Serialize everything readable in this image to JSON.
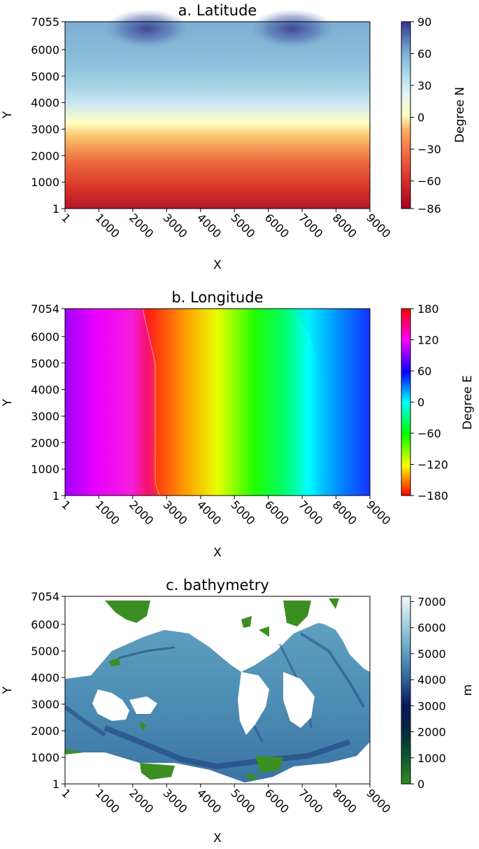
{
  "chart_data": [
    {
      "type": "heatmap",
      "title": "a. Latitude",
      "xlabel": "X",
      "ylabel": "Y",
      "xlim": [
        1,
        9000
      ],
      "ylim": [
        1,
        7055
      ],
      "x_ticks": [
        "1",
        "1000",
        "2000",
        "3000",
        "4000",
        "5000",
        "6000",
        "7000",
        "8000",
        "9000"
      ],
      "y_ticks": [
        "1",
        "1000",
        "2000",
        "3000",
        "4000",
        "5000",
        "6000",
        "7055"
      ],
      "colorbar": {
        "label": "Degree N",
        "range": [
          -86,
          90
        ],
        "ticks": [
          "90",
          "60",
          "30",
          "0",
          "−30",
          "−60",
          "−86"
        ],
        "colormap": "RdYlBu"
      }
    },
    {
      "type": "heatmap",
      "title": "b. Longitude",
      "xlabel": "X",
      "ylabel": "Y",
      "xlim": [
        1,
        9000
      ],
      "ylim": [
        1,
        7054
      ],
      "x_ticks": [
        "1",
        "1000",
        "2000",
        "3000",
        "4000",
        "5000",
        "6000",
        "7000",
        "8000",
        "9000"
      ],
      "y_ticks": [
        "1",
        "1000",
        "2000",
        "3000",
        "4000",
        "5000",
        "6000",
        "7054"
      ],
      "colorbar": {
        "label": "Degree E",
        "range": [
          -180,
          180
        ],
        "ticks": [
          "180",
          "120",
          "60",
          "0",
          "−60",
          "−120",
          "−180"
        ],
        "colormap": "hsv"
      }
    },
    {
      "type": "heatmap",
      "title": "c. bathymetry",
      "xlabel": "X",
      "ylabel": "Y",
      "xlim": [
        1,
        9000
      ],
      "ylim": [
        1,
        7054
      ],
      "x_ticks": [
        "1",
        "1000",
        "2000",
        "3000",
        "4000",
        "5000",
        "6000",
        "7000",
        "8000",
        "9000"
      ],
      "y_ticks": [
        "1",
        "1000",
        "2000",
        "3000",
        "4000",
        "5000",
        "6000",
        "7054"
      ],
      "colorbar": {
        "label": "m",
        "range": [
          0,
          7200
        ],
        "ticks": [
          "7000",
          "6000",
          "5000",
          "4000",
          "3000",
          "2000",
          "1000",
          "0"
        ],
        "colormap": "ocean"
      }
    }
  ]
}
